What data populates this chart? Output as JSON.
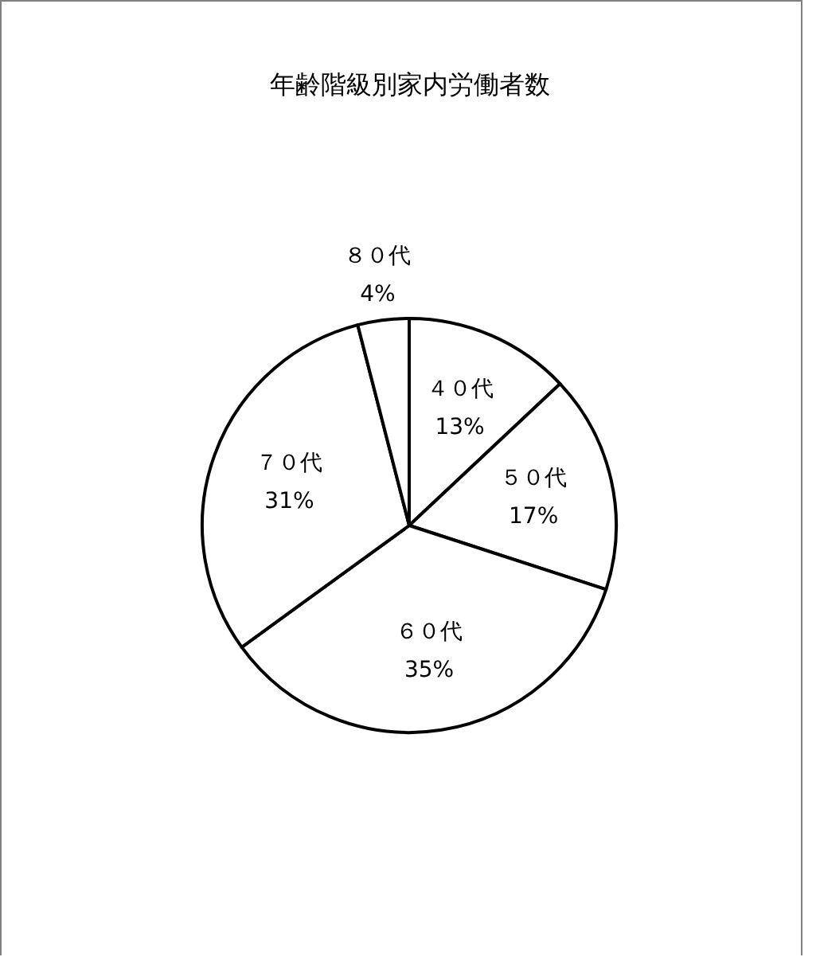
{
  "chart_data": {
    "type": "pie",
    "title": "年齢階級別家内労働者数",
    "categories": [
      "４０代",
      "５０代",
      "６０代",
      "７０代",
      "８０代"
    ],
    "values": [
      13,
      17,
      35,
      31,
      4
    ],
    "value_labels": [
      "13%",
      "17%",
      "35%",
      "31%",
      "4%"
    ],
    "colors": [
      "#ffffff",
      "#ffffff",
      "#ffffff",
      "#ffffff",
      "#ffffff"
    ],
    "legend": false
  }
}
